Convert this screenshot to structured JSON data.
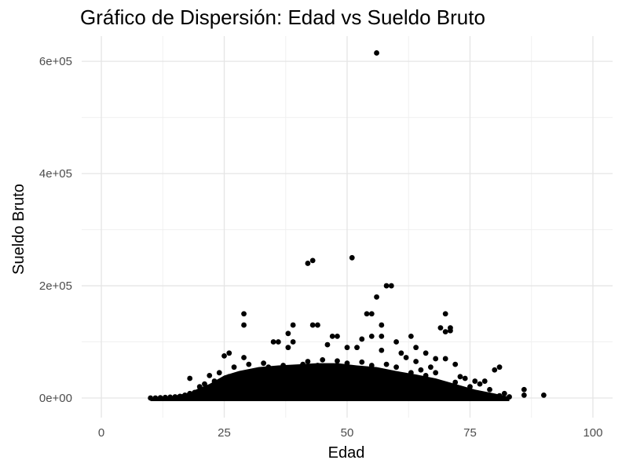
{
  "chart_data": {
    "type": "scatter",
    "title": "Gráfico de Dispersión: Edad vs Sueldo Bruto",
    "xlabel": "Edad",
    "ylabel": "Sueldo Bruto",
    "xlim": [
      -4,
      104
    ],
    "ylim": [
      -35000,
      645000
    ],
    "x_ticks": [
      0,
      25,
      50,
      75,
      100
    ],
    "x_tick_labels": [
      "0",
      "25",
      "50",
      "75",
      "100"
    ],
    "y_ticks": [
      0,
      200000,
      400000,
      600000
    ],
    "y_tick_labels": [
      "0e+00",
      "2e+05",
      "4e+05",
      "6e+05"
    ],
    "grid": true,
    "legend": "none",
    "point_color": "#000000",
    "series": [
      {
        "points": [
          [
            56,
            615000
          ],
          [
            51,
            250000
          ],
          [
            43,
            245000
          ],
          [
            42,
            240000
          ],
          [
            58,
            200000
          ],
          [
            59,
            200000
          ],
          [
            56,
            180000
          ],
          [
            29,
            150000
          ],
          [
            54,
            150000
          ],
          [
            55,
            150000
          ],
          [
            70,
            150000
          ],
          [
            29,
            130000
          ],
          [
            39,
            130000
          ],
          [
            43,
            130000
          ],
          [
            44,
            130000
          ],
          [
            57,
            130000
          ],
          [
            69,
            125000
          ],
          [
            71,
            125000
          ],
          [
            71,
            120000
          ],
          [
            70,
            118000
          ],
          [
            38,
            115000
          ],
          [
            47,
            110000
          ],
          [
            48,
            110000
          ],
          [
            55,
            110000
          ],
          [
            57,
            110000
          ],
          [
            63,
            110000
          ],
          [
            53,
            105000
          ],
          [
            35,
            100000
          ],
          [
            36,
            100000
          ],
          [
            39,
            100000
          ],
          [
            60,
            100000
          ],
          [
            46,
            95000
          ],
          [
            50,
            90000
          ],
          [
            52,
            90000
          ],
          [
            38,
            90000
          ],
          [
            64,
            90000
          ],
          [
            57,
            85000
          ],
          [
            26,
            80000
          ],
          [
            61,
            80000
          ],
          [
            66,
            80000
          ],
          [
            25,
            75000
          ],
          [
            29,
            72000
          ],
          [
            62,
            72000
          ],
          [
            68,
            70000
          ],
          [
            70,
            70000
          ],
          [
            64,
            65000
          ],
          [
            72,
            60000
          ],
          [
            67,
            55000
          ],
          [
            81,
            55000
          ],
          [
            80,
            50000
          ],
          [
            76,
            30000
          ],
          [
            78,
            30000
          ],
          [
            86,
            15000
          ],
          [
            86,
            5000
          ],
          [
            90,
            5000
          ],
          [
            75,
            20000
          ],
          [
            18,
            35000
          ],
          [
            22,
            40000
          ],
          [
            21,
            25000
          ],
          [
            23,
            30000
          ],
          [
            20,
            20000
          ],
          [
            24,
            45000
          ],
          [
            27,
            55000
          ],
          [
            30,
            60000
          ],
          [
            33,
            62000
          ],
          [
            42,
            65000
          ],
          [
            45,
            68000
          ],
          [
            48,
            66000
          ],
          [
            58,
            60000
          ],
          [
            60,
            55000
          ],
          [
            65,
            50000
          ],
          [
            68,
            45000
          ],
          [
            73,
            38000
          ],
          [
            77,
            25000
          ],
          [
            79,
            15000
          ],
          [
            82,
            8000
          ],
          [
            83,
            2000
          ],
          [
            81,
            4000
          ],
          [
            10,
            0
          ],
          [
            11,
            0
          ],
          [
            12,
            500
          ],
          [
            13,
            1000
          ],
          [
            14,
            1500
          ],
          [
            15,
            2000
          ],
          [
            16,
            3000
          ],
          [
            17,
            5000
          ],
          [
            18,
            8000
          ],
          [
            19,
            10000
          ],
          [
            66,
            40000
          ],
          [
            63,
            45000
          ],
          [
            74,
            35000
          ],
          [
            72,
            28000
          ],
          [
            34,
            55000
          ],
          [
            37,
            58000
          ],
          [
            41,
            60000
          ],
          [
            44,
            58000
          ],
          [
            50,
            62000
          ],
          [
            53,
            64000
          ],
          [
            55,
            58000
          ],
          [
            31,
            48000
          ],
          [
            28,
            42000
          ],
          [
            26,
            38000
          ]
        ]
      }
    ],
    "band": {
      "x_min": 10,
      "x_max": 83,
      "profile": [
        [
          10,
          0
        ],
        [
          14,
          2000
        ],
        [
          18,
          10000
        ],
        [
          20,
          18000
        ],
        [
          22,
          25000
        ],
        [
          25,
          40000
        ],
        [
          28,
          48000
        ],
        [
          32,
          55000
        ],
        [
          36,
          58000
        ],
        [
          40,
          60000
        ],
        [
          44,
          62000
        ],
        [
          48,
          62000
        ],
        [
          52,
          58000
        ],
        [
          56,
          55000
        ],
        [
          60,
          48000
        ],
        [
          64,
          42000
        ],
        [
          68,
          35000
        ],
        [
          72,
          25000
        ],
        [
          76,
          15000
        ],
        [
          80,
          8000
        ],
        [
          83,
          2000
        ]
      ]
    }
  }
}
